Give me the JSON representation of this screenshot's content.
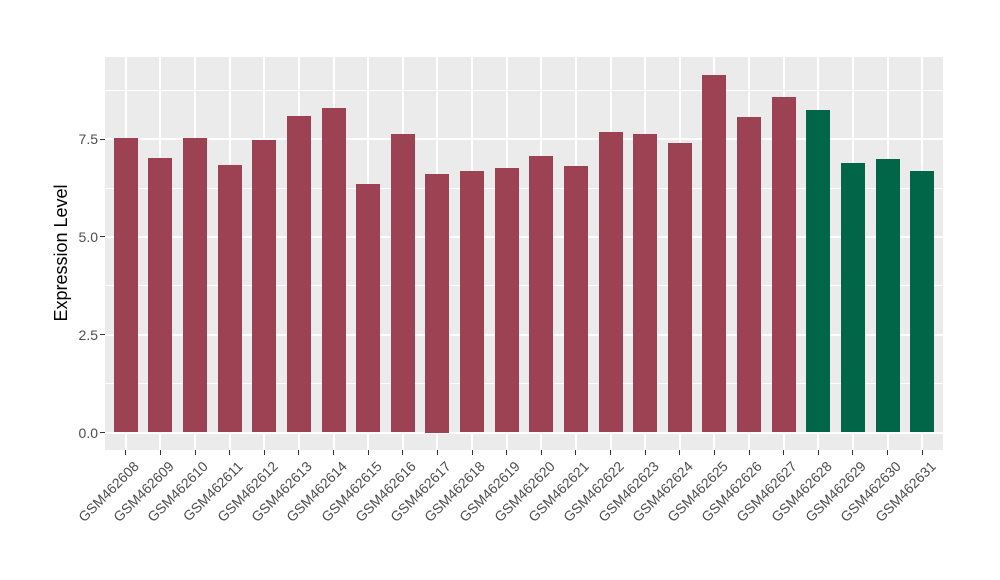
{
  "chart_data": {
    "type": "bar",
    "title": "",
    "xlabel": "",
    "ylabel": "Expression Level",
    "categories": [
      "GSM462608",
      "GSM462609",
      "GSM462610",
      "GSM462611",
      "GSM462612",
      "GSM462613",
      "GSM462614",
      "GSM462615",
      "GSM462616",
      "GSM462617",
      "GSM462618",
      "GSM462619",
      "GSM462620",
      "GSM462621",
      "GSM462622",
      "GSM462623",
      "GSM462624",
      "GSM462625",
      "GSM462626",
      "GSM462627",
      "GSM462628",
      "GSM462629",
      "GSM462630",
      "GSM462631"
    ],
    "values": [
      7.52,
      7.03,
      7.52,
      6.84,
      7.48,
      8.09,
      8.3,
      6.36,
      7.63,
      6.6,
      6.68,
      6.76,
      7.08,
      6.82,
      7.67,
      7.63,
      7.39,
      9.14,
      8.06,
      8.57,
      8.25,
      6.88,
      6.99,
      6.69
    ],
    "bar_colors": [
      "#9C4253",
      "#9C4253",
      "#9C4253",
      "#9C4253",
      "#9C4253",
      "#9C4253",
      "#9C4253",
      "#9C4253",
      "#9C4253",
      "#9C4253",
      "#9C4253",
      "#9C4253",
      "#9C4253",
      "#9C4253",
      "#9C4253",
      "#9C4253",
      "#9C4253",
      "#9C4253",
      "#9C4253",
      "#9C4253",
      "#006647",
      "#006647",
      "#006647",
      "#006647"
    ],
    "group_colors": {
      "main": "#9C4253",
      "highlight": "#006647"
    },
    "ylim": [
      0,
      9.6
    ],
    "yticks": [
      0,
      2.5,
      5,
      7.5
    ],
    "ytick_labels": [
      "0.0",
      "2.5",
      "5.0",
      "7.5"
    ],
    "yticks_minor": [
      1.25,
      3.75,
      6.25,
      8.75
    ],
    "grid": "white major and minor horizontal lines, white vertical line at each category",
    "legend": "none",
    "x_label_rotation_deg": 45,
    "panel_bg": "#EBEBEB",
    "grid_color": "#FFFFFF",
    "tick_label_color": "#4D4D4D",
    "tick_mark_color": "#333333",
    "axis_title_color": "#000000",
    "figure_bg": "#FFFFFF"
  }
}
